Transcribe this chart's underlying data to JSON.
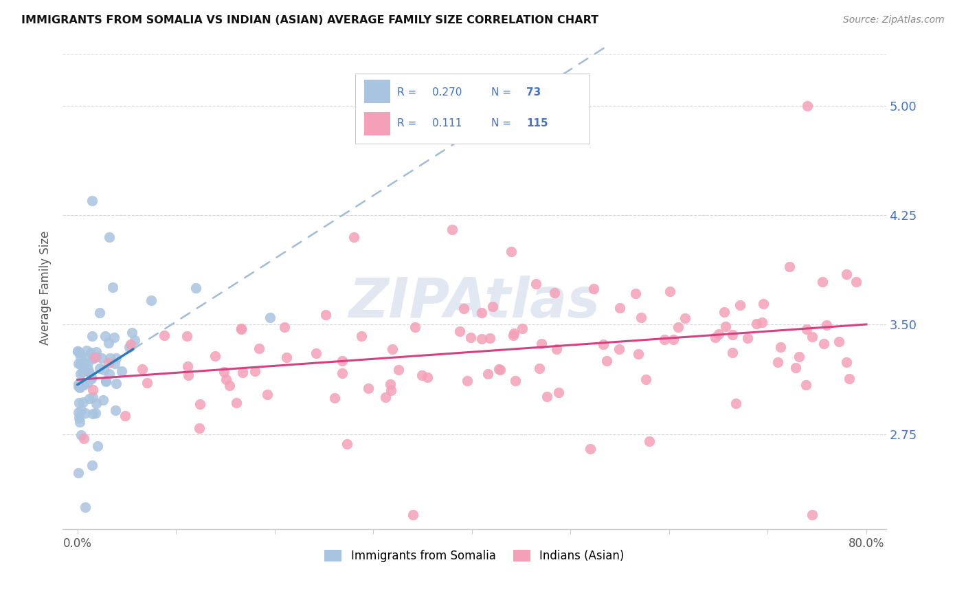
{
  "title": "IMMIGRANTS FROM SOMALIA VS INDIAN (ASIAN) AVERAGE FAMILY SIZE CORRELATION CHART",
  "source": "Source: ZipAtlas.com",
  "ylabel": "Average Family Size",
  "yticks": [
    2.75,
    3.5,
    4.25,
    5.0
  ],
  "legend_label1": "Immigrants from Somalia",
  "legend_label2": "Indians (Asian)",
  "somalia_color": "#a8c4e0",
  "somalia_line_color": "#2b7cb8",
  "somalia_dash_color": "#a0bcd8",
  "indian_color": "#f4a0b8",
  "indian_line_color": "#d64080",
  "legend_blue": "#4472c4",
  "watermark_color": "#cdd9e8",
  "grid_color": "#cccccc",
  "title_color": "#111111",
  "source_color": "#888888",
  "ylabel_color": "#555555",
  "tick_color": "#555555",
  "x_min": 0,
  "x_max": 80,
  "y_min": 2.1,
  "y_max": 5.4
}
